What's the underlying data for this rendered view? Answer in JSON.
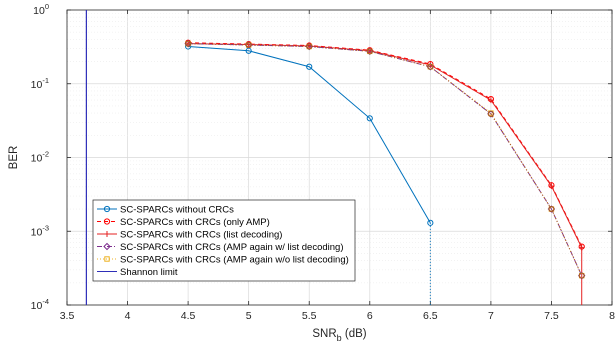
{
  "chart_data": {
    "type": "line",
    "xlabel": {
      "main": "SNR",
      "sub": "b",
      "unit": " (dB)"
    },
    "ylabel": "BER",
    "xlim": [
      3.5,
      8
    ],
    "ylim_log10": [
      -4,
      0
    ],
    "y_scale": "log",
    "grid": true,
    "minor_grid": true,
    "legend_position": "bottom-left",
    "x_ticks": [
      "3.5",
      "4",
      "4.5",
      "5",
      "5.5",
      "6",
      "6.5",
      "7",
      "7.5",
      "8"
    ],
    "x_tick_values": [
      3.5,
      4,
      4.5,
      5,
      5.5,
      6,
      6.5,
      7,
      7.5,
      8
    ],
    "y_ticks": [
      {
        "exp": -4,
        "base": "10",
        "sup": "-4"
      },
      {
        "exp": -3,
        "base": "10",
        "sup": "-3"
      },
      {
        "exp": -2,
        "base": "10",
        "sup": "-2"
      },
      {
        "exp": -1,
        "base": "10",
        "sup": "-1"
      },
      {
        "exp": 0,
        "base": "10",
        "sup": "0"
      }
    ],
    "series": [
      {
        "name": "SC-SPARCs without CRCs",
        "color": "#0072BD",
        "dash": "solid",
        "marker": "circle",
        "x": [
          4.5,
          5,
          5.5,
          6,
          6.5
        ],
        "y": [
          0.32,
          0.28,
          0.17,
          0.034,
          0.0013
        ],
        "drop_to_axis": {
          "x": 6.5,
          "dash": "dotted"
        }
      },
      {
        "name": "SC-SPARCs with CRCs (only AMP)",
        "color": "#FF0000",
        "dash": "dashed",
        "marker": "circle",
        "x": [
          4.5,
          5,
          5.5,
          6,
          6.5,
          7,
          7.5,
          7.75
        ],
        "y": [
          0.36,
          0.345,
          0.33,
          0.285,
          0.185,
          0.062,
          0.0042,
          0.00062
        ]
      },
      {
        "name": "SC-SPARCs with CRCs (list decoding)",
        "color": "#E52020",
        "dash": "solid",
        "marker": "plus",
        "x": [
          4.5,
          5,
          5.5,
          6,
          6.5,
          7,
          7.5,
          7.75
        ],
        "y": [
          0.35,
          0.34,
          0.325,
          0.28,
          0.18,
          0.06,
          0.0041,
          0.0006
        ],
        "drop_to_axis": {
          "x": 7.75,
          "dash": "solid"
        }
      },
      {
        "name": "SC-SPARCs with CRCs (AMP again w/ list decoding)",
        "color": "#7E2F8E",
        "dash": "dashdot",
        "marker": "diamond",
        "x": [
          4.5,
          5,
          5.5,
          6,
          6.5,
          7,
          7.5,
          7.75
        ],
        "y": [
          0.35,
          0.335,
          0.32,
          0.275,
          0.17,
          0.039,
          0.002,
          0.00025
        ]
      },
      {
        "name": "SC-SPARCs with CRCs (AMP again w/o list decoding)",
        "color": "#EDB120",
        "dash": "dotted",
        "marker": "square",
        "x": [
          4.5,
          5,
          5.5,
          6,
          6.5,
          7,
          7.5,
          7.75
        ],
        "y": [
          0.35,
          0.335,
          0.32,
          0.275,
          0.17,
          0.04,
          0.002,
          0.00025
        ]
      },
      {
        "name": "Shannon limit",
        "color": "#2E2EB8",
        "dash": "solid",
        "marker": "none",
        "vertical_line_x": 3.66
      }
    ],
    "extra_lines": [
      {
        "color": "#A0522D",
        "dash": "dotted",
        "x": [
          4.5,
          5,
          5.5,
          6,
          6.5,
          7,
          7.5,
          7.75
        ],
        "y": [
          0.35,
          0.335,
          0.32,
          0.275,
          0.17,
          0.039,
          0.002,
          0.00025
        ],
        "marker": "circle"
      }
    ]
  }
}
